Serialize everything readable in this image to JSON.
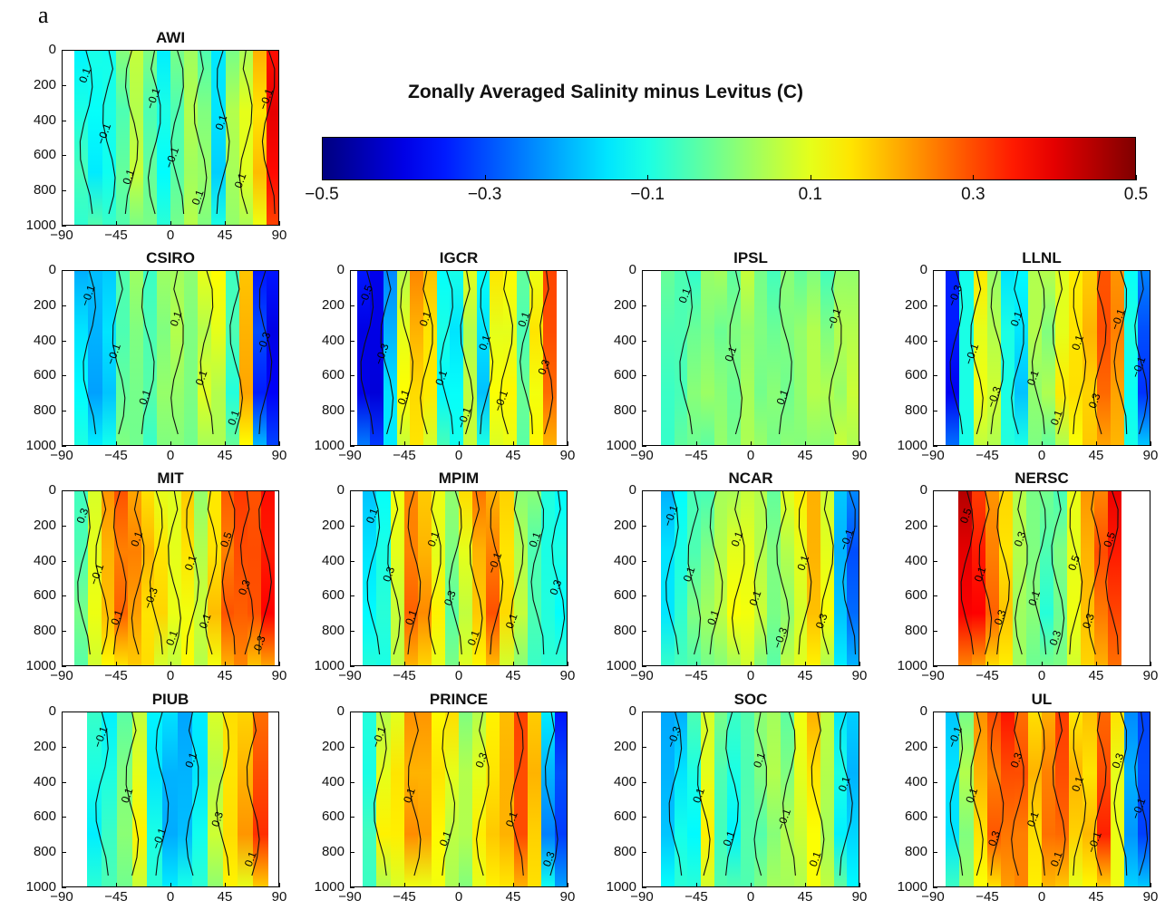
{
  "panel_label": "a",
  "colorbar": {
    "title": "Zonally Averaged Salinity minus Levitus (C)",
    "range": [
      -0.5,
      0.5
    ],
    "ticks": [
      "-0.5",
      "-0.3",
      "-0.1",
      "0.1",
      "0.3",
      "0.5"
    ],
    "colormap": "jet"
  },
  "chart_data": [
    {
      "type": "heatmap",
      "title": "AWI",
      "x_range": [
        -90,
        90
      ],
      "y_range": [
        1000,
        0
      ],
      "x_ticks": [
        "-90",
        "-45",
        "0",
        "45",
        "90"
      ],
      "y_ticks": [
        "0",
        "200",
        "400",
        "600",
        "800",
        "1000"
      ],
      "data_x_range": [
        -80,
        90
      ],
      "bands": [
        -0.1,
        -0.12,
        -0.1,
        -0.05,
        0.05,
        -0.05,
        -0.1,
        -0.05,
        0.05,
        0.0,
        -0.15,
        0.05,
        0.1,
        0.15,
        0.4
      ],
      "contour_labels": [
        "0.1",
        "-0.1",
        "0.1",
        "-0.1",
        "-0.1",
        "0.1",
        "0.1",
        "0.1",
        "-0.1"
      ]
    },
    {
      "type": "heatmap",
      "title": "CSIRO",
      "x_range": [
        -90,
        90
      ],
      "y_range": [
        1000,
        0
      ],
      "x_ticks": [
        "-90",
        "-45",
        "0",
        "45",
        "90"
      ],
      "y_ticks": [
        "0",
        "200",
        "400",
        "600",
        "800",
        "1000"
      ],
      "data_x_range": [
        -80,
        90
      ],
      "bands": [
        -0.15,
        -0.2,
        -0.15,
        -0.05,
        0.0,
        -0.05,
        0.0,
        0.05,
        0.0,
        0.05,
        0.1,
        -0.05,
        0.2,
        -0.3,
        -0.4
      ],
      "contour_labels": [
        "-0.1",
        "-0.1",
        "0.1",
        "0.1",
        "0.1",
        "0.1",
        "-0.3"
      ]
    },
    {
      "type": "heatmap",
      "title": "IGCR",
      "x_range": [
        -90,
        90
      ],
      "y_range": [
        1000,
        0
      ],
      "x_ticks": [
        "-90",
        "-45",
        "0",
        "45",
        "90"
      ],
      "y_ticks": [
        "0",
        "200",
        "400",
        "600",
        "800",
        "1000"
      ],
      "data_x_range": [
        -85,
        80
      ],
      "bands": [
        -0.4,
        -0.4,
        -0.2,
        0.1,
        0.2,
        0.15,
        -0.1,
        -0.15,
        0.05,
        -0.15,
        0.1,
        0.1,
        -0.05,
        0.15,
        0.3
      ],
      "contour_labels": [
        "-0.5",
        "-0.3",
        "0.1",
        "0.1",
        "0.1",
        "-0.1",
        "0.1",
        "-0.1",
        "0.1",
        "0.3"
      ]
    },
    {
      "type": "heatmap",
      "title": "IPSL",
      "x_range": [
        -90,
        90
      ],
      "y_range": [
        1000,
        0
      ],
      "x_ticks": [
        "-90",
        "-45",
        "0",
        "45",
        "90"
      ],
      "y_ticks": [
        "0",
        "200",
        "400",
        "600",
        "800",
        "1000"
      ],
      "data_x_range": [
        -75,
        90
      ],
      "bands": [
        -0.05,
        -0.05,
        -0.02,
        0.0,
        -0.02,
        0.0,
        0.02,
        0.0,
        -0.02,
        0.0,
        0.02,
        0.05,
        0.0,
        0.05,
        0.05
      ],
      "contour_labels": [
        "0.1",
        "0.1",
        "0.1",
        "-0.1"
      ]
    },
    {
      "type": "heatmap",
      "title": "LLNL",
      "x_range": [
        -90,
        90
      ],
      "y_range": [
        1000,
        0
      ],
      "x_ticks": [
        "-90",
        "-45",
        "0",
        "45",
        "90"
      ],
      "y_ticks": [
        "0",
        "200",
        "400",
        "600",
        "800",
        "1000"
      ],
      "data_x_range": [
        -80,
        90
      ],
      "bands": [
        -0.35,
        -0.1,
        0.1,
        0.05,
        -0.1,
        -0.15,
        0.05,
        0.0,
        0.1,
        0.15,
        0.2,
        0.3,
        0.25,
        -0.1,
        -0.3
      ],
      "contour_labels": [
        "-0.3",
        "-0.1",
        "-0.3",
        "0.1",
        "0.1",
        "0.1",
        "0.1",
        "0.3",
        "-0.1",
        "-0.1"
      ]
    },
    {
      "type": "heatmap",
      "title": "MIT",
      "x_range": [
        -90,
        90
      ],
      "y_range": [
        1000,
        0
      ],
      "x_ticks": [
        "-90",
        "-45",
        "0",
        "45",
        "90"
      ],
      "y_ticks": [
        "0",
        "200",
        "400",
        "600",
        "800",
        "1000"
      ],
      "data_x_range": [
        -80,
        85
      ],
      "bands": [
        -0.05,
        0.1,
        0.2,
        0.25,
        0.25,
        0.2,
        0.15,
        0.1,
        0.15,
        0.05,
        0.15,
        0.25,
        0.3,
        0.3,
        0.35
      ],
      "contour_labels": [
        "0.3",
        "-0.1",
        "0.1",
        "0.1",
        "-0.3",
        "0.1",
        "0.1",
        "0.1",
        "0.5",
        "0.3",
        "0.3"
      ]
    },
    {
      "type": "heatmap",
      "title": "MPIM",
      "x_range": [
        -90,
        90
      ],
      "y_range": [
        1000,
        0
      ],
      "x_ticks": [
        "-90",
        "-45",
        "0",
        "45",
        "90"
      ],
      "y_ticks": [
        "0",
        "200",
        "400",
        "600",
        "800",
        "1000"
      ],
      "data_x_range": [
        -80,
        90
      ],
      "bands": [
        -0.15,
        -0.1,
        0.1,
        0.25,
        0.2,
        0.1,
        0.0,
        0.1,
        0.2,
        0.25,
        0.15,
        0.05,
        -0.05,
        -0.1,
        -0.1
      ],
      "contour_labels": [
        "0.1",
        "0.3",
        "0.1",
        "0.1",
        "0.3",
        "0.1",
        "-0.1",
        "0.1",
        "0.1",
        "0.3"
      ]
    },
    {
      "type": "heatmap",
      "title": "NCAR",
      "x_range": [
        -90,
        90
      ],
      "y_range": [
        1000,
        0
      ],
      "x_ticks": [
        "-90",
        "-45",
        "0",
        "45",
        "90"
      ],
      "y_ticks": [
        "0",
        "200",
        "400",
        "600",
        "800",
        "1000"
      ],
      "data_x_range": [
        -75,
        90
      ],
      "bands": [
        -0.15,
        -0.1,
        -0.05,
        0.0,
        0.05,
        0.1,
        0.1,
        0.05,
        0.0,
        0.05,
        0.1,
        0.2,
        0.1,
        -0.2,
        -0.3
      ],
      "contour_labels": [
        "-0.1",
        "0.1",
        "0.1",
        "0.1",
        "0.1",
        "-0.3",
        "0.1",
        "0.3",
        "-0.1"
      ]
    },
    {
      "type": "heatmap",
      "title": "NERSC",
      "x_range": [
        -90,
        90
      ],
      "y_range": [
        1000,
        0
      ],
      "x_ticks": [
        "-90",
        "-45",
        "0",
        "45",
        "90"
      ],
      "y_ticks": [
        "0",
        "200",
        "400",
        "600",
        "800",
        "1000"
      ],
      "data_x_range": [
        -70,
        65
      ],
      "bands": [
        0.4,
        0.35,
        0.25,
        0.15,
        0.05,
        0.0,
        -0.05,
        0.0,
        0.1,
        0.2,
        0.3,
        0.35
      ],
      "contour_labels": [
        "0.5",
        "0.1",
        "0.3",
        "0.3",
        "0.1",
        "0.3",
        "0.5",
        "0.3",
        "0.5"
      ]
    },
    {
      "type": "heatmap",
      "title": "PIUB",
      "x_range": [
        -90,
        90
      ],
      "y_range": [
        1000,
        0
      ],
      "x_ticks": [
        "-90",
        "-45",
        "0",
        "45",
        "90"
      ],
      "y_ticks": [
        "0",
        "200",
        "400",
        "600",
        "800",
        "1000"
      ],
      "data_x_range": [
        -70,
        80
      ],
      "bands": [
        -0.1,
        -0.1,
        0.0,
        0.1,
        -0.15,
        -0.2,
        -0.2,
        -0.15,
        0.05,
        0.15,
        0.2,
        0.3
      ],
      "contour_labels": [
        "-0.1",
        "0.1",
        "-0.1",
        "0.1",
        "0.3",
        "0.1"
      ]
    },
    {
      "type": "heatmap",
      "title": "PRINCE",
      "x_range": [
        -90,
        90
      ],
      "y_range": [
        1000,
        0
      ],
      "x_ticks": [
        "-90",
        "-45",
        "0",
        "45",
        "90"
      ],
      "y_ticks": [
        "0",
        "200",
        "400",
        "600",
        "800",
        "1000"
      ],
      "data_x_range": [
        -80,
        90
      ],
      "bands": [
        -0.1,
        0.1,
        0.15,
        0.2,
        0.2,
        0.15,
        0.1,
        0.05,
        0.1,
        0.15,
        0.2,
        0.3,
        0.2,
        -0.2,
        -0.3
      ],
      "contour_labels": [
        "-0.1",
        "0.1",
        "0.1",
        "0.3",
        "0.1",
        "0.3"
      ]
    },
    {
      "type": "heatmap",
      "title": "SOC",
      "x_range": [
        -90,
        90
      ],
      "y_range": [
        1000,
        0
      ],
      "x_ticks": [
        "-90",
        "-45",
        "0",
        "45",
        "90"
      ],
      "y_ticks": [
        "0",
        "200",
        "400",
        "600",
        "800",
        "1000"
      ],
      "data_x_range": [
        -75,
        90
      ],
      "bands": [
        -0.2,
        -0.15,
        -0.1,
        0.1,
        -0.05,
        -0.1,
        -0.05,
        0.0,
        0.05,
        0.0,
        0.1,
        0.15,
        0.05,
        -0.1,
        -0.2
      ],
      "contour_labels": [
        "-0.3",
        "0.1",
        "0.1",
        "0.1",
        "-0.1",
        "0.1",
        "0.1"
      ]
    },
    {
      "type": "heatmap",
      "title": "UL",
      "x_range": [
        -90,
        90
      ],
      "y_range": [
        1000,
        0
      ],
      "x_ticks": [
        "-90",
        "-45",
        "0",
        "45",
        "90"
      ],
      "y_ticks": [
        "0",
        "200",
        "400",
        "600",
        "800",
        "1000"
      ],
      "data_x_range": [
        -80,
        90
      ],
      "bands": [
        -0.15,
        0.05,
        0.2,
        0.25,
        0.3,
        0.3,
        0.2,
        0.25,
        0.3,
        0.2,
        0.15,
        0.3,
        0.1,
        -0.2,
        -0.3
      ],
      "contour_labels": [
        "-0.1",
        "0.1",
        "0.3",
        "0.3",
        "0.1",
        "0.1",
        "0.1",
        "-0.1",
        "0.3",
        "-0.1"
      ]
    }
  ]
}
